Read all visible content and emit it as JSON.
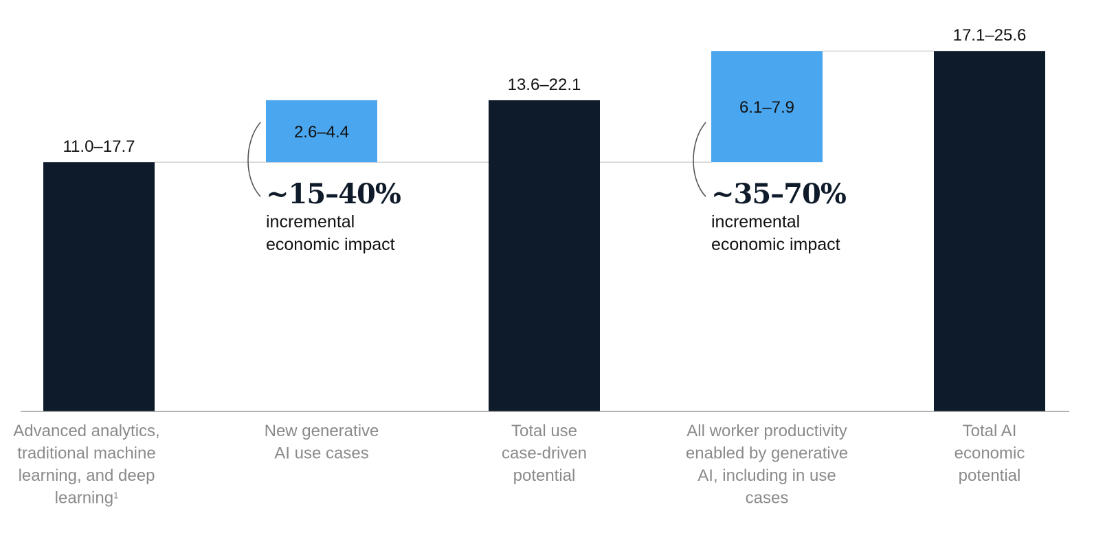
{
  "colors": {
    "dark_bar": "#0e1b2a",
    "increment_bar": "#4aa6ee",
    "axis": "#9a9a9a",
    "connector": "#bdbdbd",
    "category_text": "#8a8a8a"
  },
  "chart_data": {
    "type": "bar",
    "subtype": "waterfall",
    "ylim": [
      0,
      27
    ],
    "grid": false,
    "legend": "none",
    "categories": [
      [
        "Advanced analytics,",
        "traditional machine",
        "learning, and deep",
        "learning"
      ],
      [
        "New generative",
        "AI use cases"
      ],
      [
        "Total use",
        "case-driven",
        "potential"
      ],
      [
        "All worker productivity",
        "enabled by generative",
        "AI, including in use",
        "cases"
      ],
      [
        "Total AI",
        "economic",
        "potential"
      ]
    ],
    "footnote_marker": "1",
    "bars": [
      {
        "kind": "total",
        "base": 0,
        "value": 17.7,
        "label": "11.0–17.7"
      },
      {
        "kind": "increment",
        "base": 17.7,
        "value": 4.4,
        "label": "2.6–4.4"
      },
      {
        "kind": "total",
        "base": 0,
        "value": 22.1,
        "label": "13.6–22.1"
      },
      {
        "kind": "increment",
        "base": 17.7,
        "value": 7.9,
        "label": "6.1–7.9"
      },
      {
        "kind": "total",
        "base": 0,
        "value": 25.6,
        "label": "17.1–25.6"
      }
    ],
    "annotations": [
      {
        "bar_index": 1,
        "percent": "~15–40%",
        "lines": [
          "incremental",
          "economic impact"
        ]
      },
      {
        "bar_index": 3,
        "percent": "~35–70%",
        "lines": [
          "incremental",
          "economic impact"
        ]
      }
    ]
  }
}
